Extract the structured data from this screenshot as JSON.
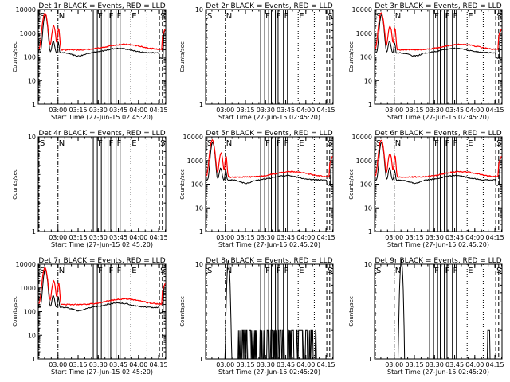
{
  "figure": {
    "grid": "3x3",
    "date_label": "27-Jun-15 02:45:20",
    "colors": {
      "events": "#000000",
      "lld": "#ff0000",
      "axes": "#000000",
      "background": "#ffffff"
    }
  },
  "chart_data": [
    {
      "id": "det1r",
      "type": "line",
      "title": "Det 1r BLACK = Events, RED = LLD",
      "xlabel": "Start Time (27-Jun-15 02:45:20)",
      "ylabel": "Counts/sec",
      "yscale": "log",
      "ylim": [
        1,
        10000
      ],
      "yticks": [
        "1",
        "10",
        "100",
        "1000",
        "10000"
      ],
      "xlim_minutes": [
        0,
        95
      ],
      "xticks": [
        "03:00",
        "03:15",
        "03:30",
        "03:45",
        "04:00",
        "04:15"
      ],
      "xtick_minutes": [
        14.7,
        29.7,
        44.7,
        59.7,
        74.7,
        89.7
      ],
      "mode": "flare",
      "markers": [
        {
          "label": "S",
          "t": 0.6,
          "style": "dash-dot"
        },
        {
          "label": "N",
          "t": 14.7,
          "style": "dash-dot"
        },
        {
          "label": "F",
          "t": 44.0,
          "style": "solid"
        },
        {
          "label": "F",
          "t": 52.0,
          "style": "solid"
        },
        {
          "label": "F",
          "t": 58.0,
          "style": "solid"
        },
        {
          "label": "E",
          "t": 69.0,
          "style": "dotted"
        },
        {
          "label": "S",
          "t": 90.3,
          "style": "dashed"
        }
      ],
      "series": [
        {
          "name": "Events",
          "color": "#000000"
        },
        {
          "name": "LLD",
          "color": "#ff0000"
        }
      ]
    },
    {
      "id": "det2r",
      "type": "line",
      "title": "Det 2r BLACK = Events, RED = LLD",
      "xlabel": "Start Time (27-Jun-15 02:45:20)",
      "ylabel": "Counts/sec",
      "yscale": "log",
      "ylim": [
        1,
        10
      ],
      "yticks": [
        "1",
        "10"
      ],
      "xlim_minutes": [
        0,
        95
      ],
      "xticks": [
        "03:00",
        "03:15",
        "03:30",
        "03:45",
        "04:00",
        "04:15"
      ],
      "xtick_minutes": [
        14.7,
        29.7,
        44.7,
        59.7,
        74.7,
        89.7
      ],
      "mode": "empty",
      "markers": [
        {
          "label": "S",
          "t": 0.6,
          "style": "dash-dot"
        },
        {
          "label": "N",
          "t": 14.7,
          "style": "dash-dot"
        },
        {
          "label": "F",
          "t": 44.0,
          "style": "solid"
        },
        {
          "label": "F",
          "t": 52.0,
          "style": "solid"
        },
        {
          "label": "F",
          "t": 58.0,
          "style": "solid"
        },
        {
          "label": "E",
          "t": 69.0,
          "style": "dotted"
        },
        {
          "label": "S",
          "t": 90.3,
          "style": "dashed"
        }
      ],
      "series": [
        {
          "name": "Events",
          "color": "#000000"
        },
        {
          "name": "LLD",
          "color": "#ff0000"
        }
      ]
    },
    {
      "id": "det3r",
      "type": "line",
      "title": "Det 3r BLACK = Events, RED = LLD",
      "xlabel": "Start Time (27-Jun-15 02:45:20)",
      "ylabel": "Counts/sec",
      "yscale": "log",
      "ylim": [
        1,
        10000
      ],
      "yticks": [
        "1",
        "10",
        "100",
        "1000",
        "10000"
      ],
      "xlim_minutes": [
        0,
        95
      ],
      "xticks": [
        "03:00",
        "03:15",
        "03:30",
        "03:45",
        "04:00",
        "04:15"
      ],
      "xtick_minutes": [
        14.7,
        29.7,
        44.7,
        59.7,
        74.7,
        89.7
      ],
      "mode": "flare",
      "markers": [
        {
          "label": "S",
          "t": 0.6,
          "style": "dash-dot"
        },
        {
          "label": "N",
          "t": 14.7,
          "style": "dash-dot"
        },
        {
          "label": "F",
          "t": 44.0,
          "style": "solid"
        },
        {
          "label": "F",
          "t": 52.0,
          "style": "solid"
        },
        {
          "label": "F",
          "t": 58.0,
          "style": "solid"
        },
        {
          "label": "E",
          "t": 69.0,
          "style": "dotted"
        },
        {
          "label": "S",
          "t": 90.3,
          "style": "dashed"
        }
      ],
      "series": [
        {
          "name": "Events",
          "color": "#000000"
        },
        {
          "name": "LLD",
          "color": "#ff0000"
        }
      ]
    },
    {
      "id": "det4r",
      "type": "line",
      "title": "Det 4r BLACK = Events, RED = LLD",
      "xlabel": "Start Time (27-Jun-15 02:45:20)",
      "ylabel": "Counts/sec",
      "yscale": "log",
      "ylim": [
        1,
        10
      ],
      "yticks": [
        "1",
        "10"
      ],
      "xlim_minutes": [
        0,
        95
      ],
      "xticks": [
        "03:00",
        "03:15",
        "03:30",
        "03:45",
        "04:00",
        "04:15"
      ],
      "xtick_minutes": [
        14.7,
        29.7,
        44.7,
        59.7,
        74.7,
        89.7
      ],
      "mode": "empty",
      "markers": [
        {
          "label": "S",
          "t": 0.6,
          "style": "dash-dot"
        },
        {
          "label": "N",
          "t": 14.7,
          "style": "dash-dot"
        },
        {
          "label": "F",
          "t": 44.0,
          "style": "solid"
        },
        {
          "label": "F",
          "t": 52.0,
          "style": "solid"
        },
        {
          "label": "F",
          "t": 58.0,
          "style": "solid"
        },
        {
          "label": "E",
          "t": 69.0,
          "style": "dotted"
        },
        {
          "label": "S",
          "t": 90.3,
          "style": "dashed"
        }
      ],
      "series": [
        {
          "name": "Events",
          "color": "#000000"
        },
        {
          "name": "LLD",
          "color": "#ff0000"
        }
      ]
    },
    {
      "id": "det5r",
      "type": "line",
      "title": "Det 5r BLACK = Events, RED = LLD",
      "xlabel": "Start Time (27-Jun-15 02:45:20)",
      "ylabel": "Counts/sec",
      "yscale": "log",
      "ylim": [
        1,
        10000
      ],
      "yticks": [
        "1",
        "10",
        "100",
        "1000",
        "10000"
      ],
      "xlim_minutes": [
        0,
        95
      ],
      "xticks": [
        "03:00",
        "03:15",
        "03:30",
        "03:45",
        "04:00",
        "04:15"
      ],
      "xtick_minutes": [
        14.7,
        29.7,
        44.7,
        59.7,
        74.7,
        89.7
      ],
      "mode": "flare",
      "markers": [
        {
          "label": "S",
          "t": 0.6,
          "style": "dash-dot"
        },
        {
          "label": "N",
          "t": 14.7,
          "style": "dash-dot"
        },
        {
          "label": "F",
          "t": 44.0,
          "style": "solid"
        },
        {
          "label": "F",
          "t": 52.0,
          "style": "solid"
        },
        {
          "label": "F",
          "t": 58.0,
          "style": "solid"
        },
        {
          "label": "E",
          "t": 69.0,
          "style": "dotted"
        },
        {
          "label": "S",
          "t": 90.3,
          "style": "dashed"
        }
      ],
      "series": [
        {
          "name": "Events",
          "color": "#000000"
        },
        {
          "name": "LLD",
          "color": "#ff0000"
        }
      ]
    },
    {
      "id": "det6r",
      "type": "line",
      "title": "Det 6r BLACK = Events, RED = LLD",
      "xlabel": "Start Time (27-Jun-15 02:45:20)",
      "ylabel": "Counts/sec",
      "yscale": "log",
      "ylim": [
        1,
        10000
      ],
      "yticks": [
        "1",
        "10",
        "100",
        "1000",
        "10000"
      ],
      "xlim_minutes": [
        0,
        95
      ],
      "xticks": [
        "03:00",
        "03:15",
        "03:30",
        "03:45",
        "04:00",
        "04:15"
      ],
      "xtick_minutes": [
        14.7,
        29.7,
        44.7,
        59.7,
        74.7,
        89.7
      ],
      "mode": "flare",
      "markers": [
        {
          "label": "S",
          "t": 0.6,
          "style": "dash-dot"
        },
        {
          "label": "N",
          "t": 14.7,
          "style": "dash-dot"
        },
        {
          "label": "F",
          "t": 44.0,
          "style": "solid"
        },
        {
          "label": "F",
          "t": 52.0,
          "style": "solid"
        },
        {
          "label": "F",
          "t": 58.0,
          "style": "solid"
        },
        {
          "label": "E",
          "t": 69.0,
          "style": "dotted"
        },
        {
          "label": "S",
          "t": 90.3,
          "style": "dashed"
        }
      ],
      "series": [
        {
          "name": "Events",
          "color": "#000000"
        },
        {
          "name": "LLD",
          "color": "#ff0000"
        }
      ]
    },
    {
      "id": "det7r",
      "type": "line",
      "title": "Det 7r BLACK = Events, RED = LLD",
      "xlabel": "Start Time (27-Jun-15 02:45:20)",
      "ylabel": "Counts/sec",
      "yscale": "log",
      "ylim": [
        1,
        10000
      ],
      "yticks": [
        "1",
        "10",
        "100",
        "1000",
        "10000"
      ],
      "xlim_minutes": [
        0,
        95
      ],
      "xticks": [
        "03:00",
        "03:15",
        "03:30",
        "03:45",
        "04:00",
        "04:15"
      ],
      "xtick_minutes": [
        14.7,
        29.7,
        44.7,
        59.7,
        74.7,
        89.7
      ],
      "mode": "flare",
      "markers": [
        {
          "label": "S",
          "t": 0.6,
          "style": "dash-dot"
        },
        {
          "label": "N",
          "t": 14.7,
          "style": "dash-dot"
        },
        {
          "label": "F",
          "t": 44.0,
          "style": "solid"
        },
        {
          "label": "F",
          "t": 52.0,
          "style": "solid"
        },
        {
          "label": "F",
          "t": 58.0,
          "style": "solid"
        },
        {
          "label": "E",
          "t": 69.0,
          "style": "dotted"
        },
        {
          "label": "S",
          "t": 90.3,
          "style": "dashed"
        }
      ],
      "series": [
        {
          "name": "Events",
          "color": "#000000"
        },
        {
          "name": "LLD",
          "color": "#ff0000"
        }
      ]
    },
    {
      "id": "det8r",
      "type": "line",
      "title": "Det 8r BLACK = Events, RED = LLD",
      "xlabel": "Start Time (27-Jun-15 02:45:20)",
      "ylabel": "Counts/sec",
      "yscale": "log",
      "ylim": [
        1,
        10
      ],
      "yticks": [
        "1",
        "10"
      ],
      "xlim_minutes": [
        0,
        95
      ],
      "xticks": [
        "03:00",
        "03:15",
        "03:30",
        "03:45",
        "04:00",
        "04:15"
      ],
      "xtick_minutes": [
        14.7,
        29.7,
        44.7,
        59.7,
        74.7,
        89.7
      ],
      "mode": "sparse8",
      "markers": [
        {
          "label": "S",
          "t": 0.6,
          "style": "dash-dot"
        },
        {
          "label": "N",
          "t": 14.7,
          "style": "dash-dot"
        },
        {
          "label": "F",
          "t": 44.0,
          "style": "solid"
        },
        {
          "label": "F",
          "t": 52.0,
          "style": "solid"
        },
        {
          "label": "F",
          "t": 58.0,
          "style": "solid"
        },
        {
          "label": "E",
          "t": 69.0,
          "style": "dotted"
        },
        {
          "label": "S",
          "t": 90.3,
          "style": "dashed"
        }
      ],
      "series": [
        {
          "name": "Events",
          "color": "#000000"
        },
        {
          "name": "LLD",
          "color": "#ff0000"
        }
      ]
    },
    {
      "id": "det9r",
      "type": "line",
      "title": "Det 9r BLACK = Events, RED = LLD",
      "xlabel": "Start Time (27-Jun-15 02:45:20)",
      "ylabel": "Counts/sec",
      "yscale": "log",
      "ylim": [
        1,
        10
      ],
      "yticks": [
        "1",
        "10"
      ],
      "xlim_minutes": [
        0,
        95
      ],
      "xticks": [
        "03:00",
        "03:15",
        "03:30",
        "03:45",
        "04:00",
        "04:15"
      ],
      "xtick_minutes": [
        14.7,
        29.7,
        44.7,
        59.7,
        74.7,
        89.7
      ],
      "mode": "sparse9",
      "markers": [
        {
          "label": "S",
          "t": 0.6,
          "style": "dash-dot"
        },
        {
          "label": "N",
          "t": 14.7,
          "style": "dash-dot"
        },
        {
          "label": "F",
          "t": 44.0,
          "style": "solid"
        },
        {
          "label": "F",
          "t": 52.0,
          "style": "solid"
        },
        {
          "label": "F",
          "t": 58.0,
          "style": "solid"
        },
        {
          "label": "E",
          "t": 69.0,
          "style": "dotted"
        },
        {
          "label": "S",
          "t": 90.3,
          "style": "dashed"
        }
      ],
      "series": [
        {
          "name": "Events",
          "color": "#000000"
        },
        {
          "name": "LLD",
          "color": "#ff0000"
        }
      ]
    }
  ]
}
